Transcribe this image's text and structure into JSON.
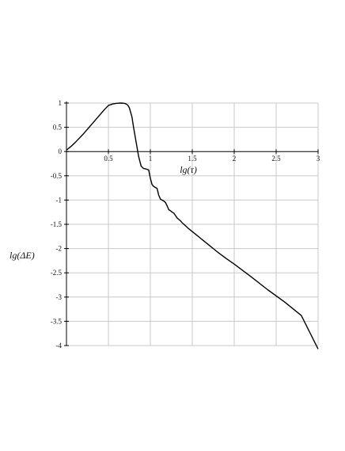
{
  "chart_data": {
    "type": "line",
    "xlabel": "lg(τ)",
    "ylabel": "lg(ΔE)",
    "xlim": [
      0,
      3
    ],
    "ylim": [
      -4,
      1
    ],
    "grid": true,
    "x_ticks": [
      0.5,
      1,
      1.5,
      2,
      2.5,
      3
    ],
    "x_tick_labels": [
      "0.5",
      "1",
      "1.5",
      "2",
      "2.5",
      "3"
    ],
    "y_ticks": [
      1,
      0.5,
      0,
      -0.5,
      -1,
      -1.5,
      -2,
      -2.5,
      -3,
      -3.5,
      -4
    ],
    "y_tick_labels": [
      "1",
      "0.5",
      "0",
      "-0.5",
      "-1",
      "-1.5",
      "-2",
      "-2.5",
      "-3",
      "-3.5",
      "-4"
    ],
    "series": [
      {
        "color": "#000000",
        "x": [
          0,
          0.05,
          0.1,
          0.15,
          0.2,
          0.25,
          0.3,
          0.35,
          0.4,
          0.45,
          0.5,
          0.55,
          0.6,
          0.65,
          0.7,
          0.73,
          0.75,
          0.78,
          0.8,
          0.83,
          0.86,
          0.89,
          0.92,
          0.95,
          0.98,
          1.0,
          1.02,
          1.04,
          1.06,
          1.08,
          1.1,
          1.12,
          1.14,
          1.16,
          1.18,
          1.2,
          1.22,
          1.24,
          1.26,
          1.28,
          1.3,
          1.32,
          1.34,
          1.36,
          1.38,
          1.4,
          1.45,
          1.5,
          1.55,
          1.6,
          1.7,
          1.8,
          1.9,
          2.0,
          2.2,
          2.4,
          2.6,
          2.8,
          3.0
        ],
        "y": [
          0.03,
          0.1,
          0.18,
          0.27,
          0.36,
          0.46,
          0.56,
          0.66,
          0.76,
          0.86,
          0.95,
          0.98,
          0.995,
          1.0,
          0.99,
          0.96,
          0.9,
          0.72,
          0.5,
          0.2,
          -0.1,
          -0.3,
          -0.35,
          -0.36,
          -0.38,
          -0.55,
          -0.68,
          -0.72,
          -0.74,
          -0.76,
          -0.9,
          -0.98,
          -1.0,
          -1.02,
          -1.05,
          -1.12,
          -1.2,
          -1.22,
          -1.25,
          -1.27,
          -1.32,
          -1.37,
          -1.4,
          -1.43,
          -1.47,
          -1.5,
          -1.58,
          -1.65,
          -1.72,
          -1.79,
          -1.93,
          -2.07,
          -2.2,
          -2.32,
          -2.58,
          -2.85,
          -3.1,
          -3.38,
          -4.07
        ]
      }
    ]
  }
}
